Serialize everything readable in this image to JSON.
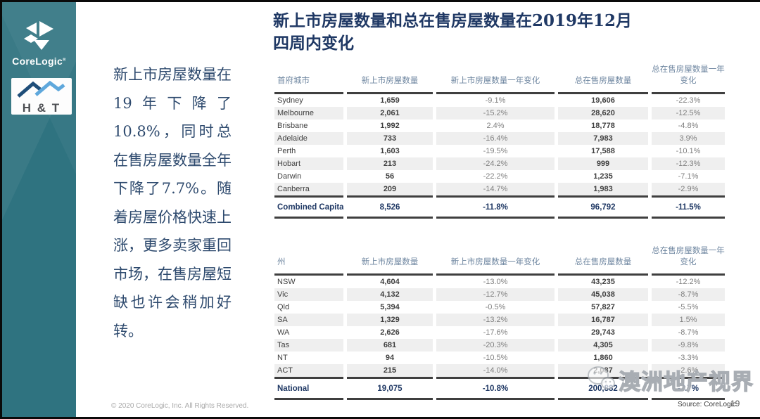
{
  "colors": {
    "sidebar_teal": "#2f7380",
    "navy": "#1f3864",
    "header_blue_gray": "#6e86a0",
    "table_text": "#3f3f3f",
    "pct_gray": "#7f7f7f",
    "zebra": "#efefef",
    "ht_dark_roof": "#1f4e79",
    "ht_light_roof": "#5fa8dc"
  },
  "sidebar": {
    "corelogic_logo_label": "CoreLogic",
    "corelogic_reg_mark": "®",
    "ht_logo_label": "H & T"
  },
  "title": {
    "line1": "新上市房屋数量和总在售房屋数量在2019年12月",
    "line2": "四周内变化"
  },
  "summary": {
    "text": "新上市房屋数量在19年下降了10.8%，同时总在售房屋数量全年下降了7.7%。随着房屋价格快速上涨，更多卖家重回市场，在售房屋短缺也许会稍加好转。"
  },
  "capitals_table": {
    "headers": [
      "首府城市",
      "新上市房屋数量",
      "新上市房屋数量一年变化",
      "总在售房屋数量",
      "总在售房屋数量一年变化"
    ],
    "rows": [
      [
        "Sydney",
        "1,659",
        "-9.1%",
        "19,606",
        "-22.3%"
      ],
      [
        "Melbourne",
        "2,061",
        "-15.2%",
        "28,620",
        "-12.5%"
      ],
      [
        "Brisbane",
        "1,992",
        "2.4%",
        "18,778",
        "-4.8%"
      ],
      [
        "Adelaide",
        "733",
        "-16.4%",
        "7,983",
        "3.9%"
      ],
      [
        "Perth",
        "1,603",
        "-19.5%",
        "17,588",
        "-10.1%"
      ],
      [
        "Hobart",
        "213",
        "-24.2%",
        "999",
        "-12.3%"
      ],
      [
        "Darwin",
        "56",
        "-22.2%",
        "1,235",
        "-7.1%"
      ],
      [
        "Canberra",
        "209",
        "-14.7%",
        "1,983",
        "-2.9%"
      ]
    ],
    "total": [
      "Combined Capitals",
      "8,526",
      "-11.8%",
      "96,792",
      "-11.5%"
    ]
  },
  "states_table": {
    "headers": [
      "州",
      "新上市房屋数量",
      "新上市房屋数量一年变化",
      "总在售房屋数量",
      "总在售房屋数量一年变化"
    ],
    "rows": [
      [
        "NSW",
        "4,604",
        "-13.0%",
        "43,235",
        "-12.2%"
      ],
      [
        "Vic",
        "4,132",
        "-12.7%",
        "45,038",
        "-8.7%"
      ],
      [
        "Qld",
        "5,394",
        "-0.5%",
        "57,827",
        "-5.5%"
      ],
      [
        "SA",
        "1,329",
        "-13.2%",
        "16,787",
        "1.5%"
      ],
      [
        "WA",
        "2,626",
        "-17.6%",
        "29,743",
        "-8.7%"
      ],
      [
        "Tas",
        "681",
        "-20.3%",
        "4,305",
        "-9.8%"
      ],
      [
        "NT",
        "94",
        "-10.5%",
        "1,860",
        "-3.3%"
      ],
      [
        "ACT",
        "215",
        "-14.0%",
        "2,087",
        "-2.6%"
      ]
    ],
    "total": [
      "National",
      "19,075",
      "-10.8%",
      "200,882",
      "-7.7%"
    ]
  },
  "footer": {
    "copyright": "© 2020 CoreLogic, Inc. All Rights Reserved.",
    "source": "Source: CoreLogic",
    "page_number": "19"
  },
  "watermark": {
    "text": "澳洲地产视界"
  }
}
